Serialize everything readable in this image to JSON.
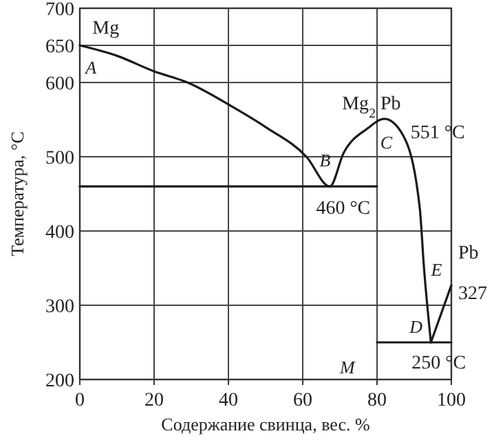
{
  "chart_data": {
    "type": "line",
    "xlabel": "Содержание свинца, вес. %",
    "ylabel": "Температура, °C",
    "xlim": [
      0,
      100
    ],
    "ylim": [
      200,
      700
    ],
    "xticks": [
      0,
      20,
      40,
      60,
      80,
      100
    ],
    "yticks": [
      200,
      300,
      400,
      500,
      600,
      650,
      700
    ],
    "grid": true,
    "marker": "none",
    "line_style": "solid",
    "series": [
      {
        "color": "#1a1a1a",
        "x": [
          0,
          10,
          20,
          29,
          41.5,
          50,
          61,
          67.3,
          71,
          77.4,
          82,
          87,
          91.5,
          92.6,
          94.5
        ],
        "values": [
          650,
          636,
          615,
          600,
          566,
          540,
          500,
          460,
          505,
          538,
          551,
          529,
          431,
          353,
          250
        ]
      },
      {
        "color": "#1a1a1a",
        "x": [
          94.5,
          100
        ],
        "values": [
          250,
          327
        ]
      },
      {
        "color": "#1a1a1a",
        "x": [
          0,
          80
        ],
        "values": [
          460,
          460
        ]
      },
      {
        "color": "#1a1a1a",
        "x": [
          80,
          100
        ],
        "values": [
          250,
          250
        ]
      }
    ],
    "annotations": [
      "Mg",
      "A",
      "B",
      "C",
      "Mg$_{2}$ Pb",
      {
        "text": "551 °C",
        "x": 82,
        "y": 551
      },
      {
        "text": "460 °C",
        "x": 67.3,
        "y": 460
      },
      "Pb",
      {
        "text": "327",
        "x": 100,
        "y": 327
      },
      "E",
      "D",
      {
        "text": "250 °C",
        "x": 94.5,
        "y": 250
      },
      "M"
    ]
  }
}
